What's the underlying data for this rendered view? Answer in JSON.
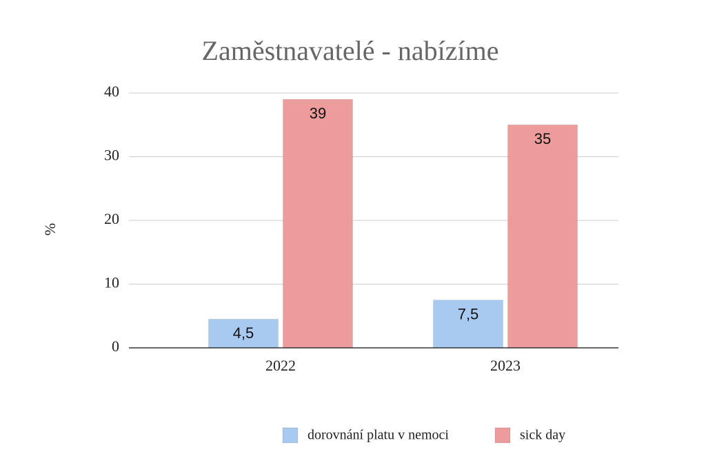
{
  "chart_data": {
    "type": "bar",
    "title": "Zaměstnavatelé - nabízíme",
    "y_label": "%",
    "categories": [
      "2022",
      "2023"
    ],
    "series": [
      {
        "name": "dorovnání platu v nemoci",
        "color": "#a8caf0",
        "values": [
          4.5,
          7.5
        ],
        "value_labels": [
          "4,5",
          "7,5"
        ]
      },
      {
        "name": "sick day",
        "color": "#ed9c9c",
        "values": [
          39,
          35
        ],
        "value_labels": [
          "39",
          "35"
        ]
      }
    ],
    "ylim": [
      0,
      40
    ],
    "yticks": [
      0,
      10,
      20,
      30,
      40
    ],
    "grid": true
  }
}
